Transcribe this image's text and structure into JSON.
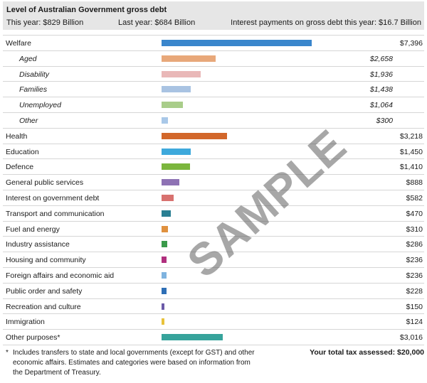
{
  "header": {
    "title": "Level of Australian Government gross debt",
    "this_year": "This year: $829 Billion",
    "last_year": "Last year: $684 Billion",
    "interest": "Interest payments on gross debt this year: $16.7 Billion"
  },
  "rows": [
    {
      "label": "Welfare",
      "amount": "$7,396",
      "value": 7396,
      "color": "#3a86cc",
      "sub": false
    },
    {
      "label": "Aged",
      "amount": "$2,658",
      "value": 2658,
      "color": "#e8a87a",
      "sub": true
    },
    {
      "label": "Disability",
      "amount": "$1,936",
      "value": 1936,
      "color": "#e9b8b8",
      "sub": true
    },
    {
      "label": "Families",
      "amount": "$1,438",
      "value": 1438,
      "color": "#a9c3e2",
      "sub": true
    },
    {
      "label": "Unemployed",
      "amount": "$1,064",
      "value": 1064,
      "color": "#a9cd8a",
      "sub": true
    },
    {
      "label": "Other",
      "amount": "$300",
      "value": 300,
      "color": "#a9c8e8",
      "sub": true
    },
    {
      "label": "Health",
      "amount": "$3,218",
      "value": 3218,
      "color": "#d2672a",
      "sub": false
    },
    {
      "label": "Education",
      "amount": "$1,450",
      "value": 1450,
      "color": "#3ea9dc",
      "sub": false
    },
    {
      "label": "Defence",
      "amount": "$1,410",
      "value": 1410,
      "color": "#7bb63d",
      "sub": false
    },
    {
      "label": "General public services",
      "amount": "$888",
      "value": 888,
      "color": "#8e72b4",
      "sub": false
    },
    {
      "label": "Interest on government debt",
      "amount": "$582",
      "value": 582,
      "color": "#d8716f",
      "sub": false
    },
    {
      "label": "Transport and communication",
      "amount": "$470",
      "value": 470,
      "color": "#2a7f93",
      "sub": false
    },
    {
      "label": "Fuel and energy",
      "amount": "$310",
      "value": 310,
      "color": "#e0913f",
      "sub": false
    },
    {
      "label": "Industry assistance",
      "amount": "$286",
      "value": 286,
      "color": "#3a9a4a",
      "sub": false
    },
    {
      "label": "Housing and community",
      "amount": "$236",
      "value": 236,
      "color": "#b02f7e",
      "sub": false
    },
    {
      "label": "Foreign affairs and economic aid",
      "amount": "$236",
      "value": 236,
      "color": "#7fb3df",
      "sub": false
    },
    {
      "label": "Public order and safety",
      "amount": "$228",
      "value": 228,
      "color": "#2e6fb6",
      "sub": false
    },
    {
      "label": "Recreation and culture",
      "amount": "$150",
      "value": 150,
      "color": "#6b5aa8",
      "sub": false
    },
    {
      "label": "Immigration",
      "amount": "$124",
      "value": 124,
      "color": "#e8c23a",
      "sub": false
    },
    {
      "label": "Other purposes*",
      "amount": "$3,016",
      "value": 3016,
      "color": "#36a39b",
      "sub": false
    }
  ],
  "scale_max": 7396,
  "footnote": {
    "marker": "*",
    "text": "Includes transfers to state and local governments (except for GST) and other economic affairs. Estimates and categories were based on information from the Department of Treasury."
  },
  "total": "Your total tax assessed: $20,000",
  "watermark": "SAMPLE"
}
